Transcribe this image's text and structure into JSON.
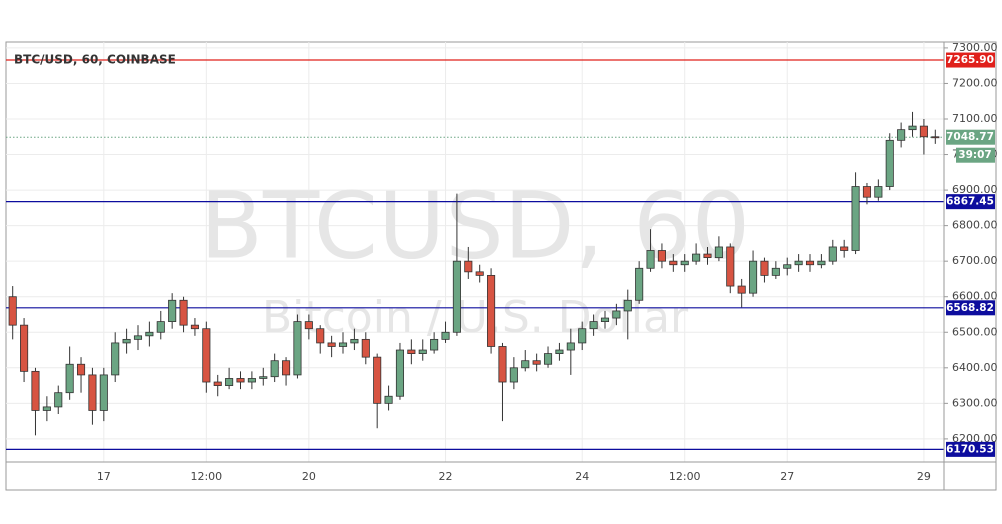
{
  "chart_data": {
    "type": "candlestick",
    "title": "BTC/USD, 60, COINBASE",
    "watermark": [
      "BTCUSD, 60",
      "Bitcoin / U.S. Dollar"
    ],
    "categories": [
      null,
      null,
      null,
      null,
      null,
      null,
      null,
      null,
      "17",
      null,
      null,
      null,
      null,
      null,
      null,
      null,
      null,
      "12:00",
      null,
      null,
      null,
      null,
      null,
      null,
      null,
      null,
      "20",
      null,
      null,
      null,
      null,
      null,
      null,
      null,
      null,
      null,
      null,
      null,
      "22",
      null,
      null,
      null,
      null,
      null,
      null,
      null,
      null,
      null,
      null,
      null,
      "24",
      null,
      null,
      null,
      null,
      null,
      null,
      null,
      null,
      "12:00",
      null,
      null,
      null,
      null,
      null,
      null,
      null,
      null,
      "27",
      null,
      null,
      null,
      null,
      null,
      null,
      null,
      null,
      null,
      null,
      null,
      "29",
      null
    ],
    "open": [
      6600,
      6520,
      6390,
      6280,
      6290,
      6330,
      6410,
      6380,
      6280,
      6380,
      6470,
      6480,
      6490,
      6500,
      6530,
      6590,
      6520,
      6510,
      6360,
      6350,
      6370,
      6360,
      6370,
      6375,
      6420,
      6380,
      6530,
      6510,
      6470,
      6460,
      6470,
      6480,
      6430,
      6300,
      6320,
      6450,
      6440,
      6450,
      6480,
      6500,
      6700,
      6670,
      6660,
      6460,
      6360,
      6400,
      6420,
      6410,
      6440,
      6450,
      6470,
      6510,
      6530,
      6540,
      6560,
      6590,
      6680,
      6730,
      6700,
      6690,
      6700,
      6720,
      6710,
      6740,
      6630,
      6610,
      6700,
      6660,
      6680,
      6690,
      6700,
      6690,
      6700,
      6740,
      6730,
      6910,
      6880,
      6910,
      7040,
      7070,
      7080,
      7050
    ],
    "high": [
      6630,
      6540,
      6400,
      6320,
      6350,
      6460,
      6430,
      6400,
      6400,
      6500,
      6510,
      6520,
      6530,
      6560,
      6610,
      6600,
      6540,
      6530,
      6380,
      6400,
      6390,
      6390,
      6400,
      6440,
      6430,
      6550,
      6550,
      6520,
      6490,
      6500,
      6510,
      6500,
      6440,
      6350,
      6470,
      6480,
      6480,
      6500,
      6530,
      6890,
      6740,
      6690,
      6680,
      6470,
      6430,
      6450,
      6440,
      6460,
      6470,
      6510,
      6530,
      6550,
      6560,
      6580,
      6620,
      6700,
      6790,
      6750,
      6720,
      6720,
      6750,
      6740,
      6770,
      6750,
      6650,
      6730,
      6710,
      6700,
      6710,
      6720,
      6720,
      6720,
      6760,
      6760,
      6950,
      6920,
      6930,
      7060,
      7090,
      7120,
      7100,
      7070
    ],
    "low": [
      6480,
      6360,
      6210,
      6250,
      6270,
      6310,
      6330,
      6240,
      6250,
      6360,
      6440,
      6450,
      6460,
      6480,
      6510,
      6500,
      6490,
      6330,
      6320,
      6340,
      6340,
      6340,
      6350,
      6360,
      6350,
      6370,
      6480,
      6440,
      6430,
      6440,
      6450,
      6410,
      6230,
      6280,
      6310,
      6410,
      6420,
      6440,
      6470,
      6490,
      6650,
      6640,
      6440,
      6250,
      6340,
      6390,
      6390,
      6400,
      6420,
      6380,
      6450,
      6490,
      6510,
      6520,
      6480,
      6580,
      6670,
      6680,
      6670,
      6670,
      6690,
      6690,
      6700,
      6610,
      6570,
      6600,
      6640,
      6650,
      6660,
      6670,
      6670,
      6680,
      6690,
      6710,
      6720,
      6860,
      6870,
      6900,
      7020,
      7050,
      7000,
      7030
    ],
    "close": [
      6520,
      6390,
      6280,
      6290,
      6330,
      6410,
      6380,
      6280,
      6380,
      6470,
      6480,
      6490,
      6500,
      6530,
      6590,
      6520,
      6510,
      6360,
      6350,
      6370,
      6360,
      6370,
      6375,
      6420,
      6380,
      6530,
      6510,
      6470,
      6460,
      6470,
      6480,
      6430,
      6300,
      6320,
      6450,
      6440,
      6450,
      6480,
      6500,
      6700,
      6670,
      6660,
      6460,
      6360,
      6400,
      6420,
      6410,
      6440,
      6450,
      6470,
      6510,
      6530,
      6540,
      6560,
      6590,
      6680,
      6730,
      6700,
      6690,
      6700,
      6720,
      6710,
      6740,
      6630,
      6610,
      6700,
      6660,
      6680,
      6690,
      6700,
      6690,
      6700,
      6740,
      6730,
      6910,
      6880,
      6910,
      7040,
      7070,
      7080,
      7050,
      7048.77
    ],
    "up_color": "#6ba583",
    "down_color": "#d75442",
    "ylim": [
      6135,
      7311
    ],
    "yticks": [
      {
        "value": 6200,
        "label": "6200.00"
      },
      {
        "value": 6300,
        "label": "6300.00"
      },
      {
        "value": 6400,
        "label": "6400.00"
      },
      {
        "value": 6500,
        "label": "6500.00"
      },
      {
        "value": 6600,
        "label": "6600.00"
      },
      {
        "value": 6700,
        "label": "6700.00"
      },
      {
        "value": 6800,
        "label": "6800.00"
      },
      {
        "value": 6900,
        "label": "6900.00"
      },
      {
        "value": 7000,
        "label": "7000.00"
      },
      {
        "value": 7100,
        "label": "7100.00"
      },
      {
        "value": 7200,
        "label": "7200.00"
      },
      {
        "value": 7300,
        "label": "7300.00"
      }
    ],
    "grid": true,
    "levels": [
      {
        "value": 7265.9,
        "label": "7265.90",
        "color": "#e0201b"
      },
      {
        "value": 6867.45,
        "label": "6867.45",
        "color": "#0d0d9e"
      },
      {
        "value": 6568.82,
        "label": "6568.82",
        "color": "#0d0d9e"
      },
      {
        "value": 6170.53,
        "label": "6170.53",
        "color": "#0d0d9e"
      }
    ],
    "last_price": {
      "value": 7048.77,
      "label": "7048.77",
      "color": "#6ba583"
    },
    "countdown": "39:07"
  }
}
